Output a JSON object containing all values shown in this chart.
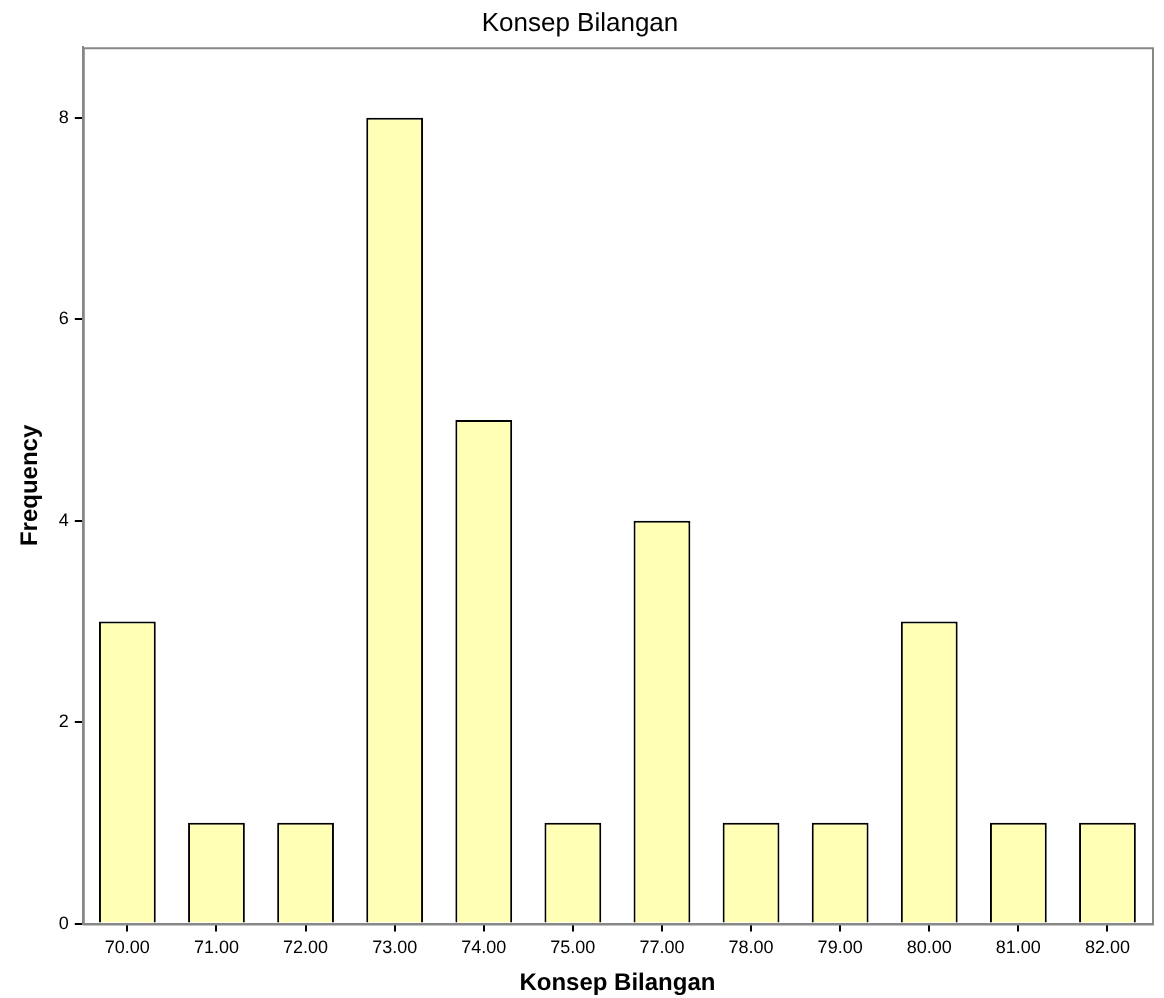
{
  "chart_data": {
    "type": "bar",
    "title": "Konsep Bilangan",
    "xlabel": "Konsep Bilangan",
    "ylabel": "Frequency",
    "categories": [
      "70.00",
      "71.00",
      "72.00",
      "73.00",
      "74.00",
      "75.00",
      "77.00",
      "78.00",
      "79.00",
      "80.00",
      "81.00",
      "82.00"
    ],
    "values": [
      3,
      1,
      1,
      8,
      5,
      1,
      4,
      1,
      1,
      3,
      1,
      1
    ],
    "color": "#ffffb5",
    "ylim": [
      0,
      8.7
    ],
    "yticks": [
      0,
      2,
      4,
      6,
      8
    ],
    "grid": false,
    "legend": false
  }
}
